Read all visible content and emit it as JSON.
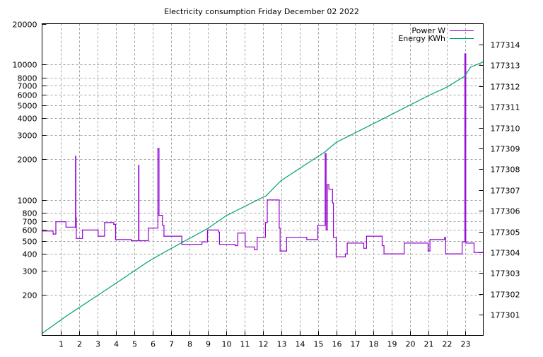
{
  "chart_data": {
    "type": "line",
    "title": "Electricity consumption Friday December 02 2022",
    "xlabel": "",
    "ylabel": "",
    "xlim": [
      0,
      24
    ],
    "ylim": [
      100,
      20000
    ],
    "yscale": "log",
    "y2lim": [
      177300,
      177315
    ],
    "grid": true,
    "legend_position": "top-right",
    "x_ticks": [
      1,
      2,
      3,
      4,
      5,
      6,
      7,
      8,
      9,
      10,
      11,
      12,
      13,
      14,
      15,
      16,
      17,
      18,
      19,
      20,
      21,
      22,
      23
    ],
    "y_ticks": [
      200,
      300,
      400,
      500,
      600,
      700,
      800,
      1000,
      2000,
      3000,
      4000,
      5000,
      6000,
      7000,
      8000,
      10000,
      20000
    ],
    "y2_ticks": [
      177301,
      177302,
      177303,
      177304,
      177305,
      177306,
      177307,
      177308,
      177309,
      177310,
      177311,
      177312,
      177313,
      177314
    ],
    "series": [
      {
        "name": "Power W",
        "axis": "y",
        "color": "#9400d3",
        "step": true,
        "points": [
          [
            0,
            590
          ],
          [
            0.6,
            560
          ],
          [
            0.75,
            690
          ],
          [
            1.3,
            630
          ],
          [
            1.8,
            630
          ],
          [
            1.82,
            2100
          ],
          [
            1.84,
            740
          ],
          [
            1.86,
            520
          ],
          [
            2.2,
            600
          ],
          [
            3.05,
            540
          ],
          [
            3.4,
            680
          ],
          [
            3.9,
            660
          ],
          [
            4.0,
            510
          ],
          [
            4.85,
            500
          ],
          [
            5.25,
            1800
          ],
          [
            5.27,
            500
          ],
          [
            5.78,
            620
          ],
          [
            6.3,
            2400
          ],
          [
            6.36,
            770
          ],
          [
            6.55,
            650
          ],
          [
            6.63,
            540
          ],
          [
            7.6,
            470
          ],
          [
            8.7,
            490
          ],
          [
            9.0,
            600
          ],
          [
            9.6,
            580
          ],
          [
            9.65,
            470
          ],
          [
            10.5,
            460
          ],
          [
            10.65,
            570
          ],
          [
            11.05,
            450
          ],
          [
            11.55,
            430
          ],
          [
            11.7,
            530
          ],
          [
            12.15,
            680
          ],
          [
            12.25,
            1000
          ],
          [
            12.9,
            620
          ],
          [
            12.95,
            420
          ],
          [
            13.3,
            530
          ],
          [
            14.4,
            510
          ],
          [
            15.0,
            650
          ],
          [
            15.4,
            2200
          ],
          [
            15.45,
            600
          ],
          [
            15.52,
            1300
          ],
          [
            15.6,
            1200
          ],
          [
            15.8,
            950
          ],
          [
            15.85,
            530
          ],
          [
            16.0,
            380
          ],
          [
            16.5,
            400
          ],
          [
            16.6,
            480
          ],
          [
            17.5,
            440
          ],
          [
            17.65,
            540
          ],
          [
            18.5,
            460
          ],
          [
            18.6,
            400
          ],
          [
            19.7,
            480
          ],
          [
            21.0,
            420
          ],
          [
            21.1,
            510
          ],
          [
            21.9,
            530
          ],
          [
            21.95,
            400
          ],
          [
            22.85,
            490
          ],
          [
            23.0,
            12000
          ],
          [
            23.05,
            480
          ],
          [
            23.5,
            410
          ],
          [
            24,
            410
          ]
        ]
      },
      {
        "name": "Energy KWh",
        "axis": "y2",
        "color": "#009e73",
        "step": false,
        "points": [
          [
            0,
            177300.1
          ],
          [
            1.3,
            177300.92
          ],
          [
            4.0,
            177302.5
          ],
          [
            5.75,
            177303.54
          ],
          [
            6.6,
            177303.98
          ],
          [
            9.0,
            177305.14
          ],
          [
            10.0,
            177305.75
          ],
          [
            12.2,
            177306.73
          ],
          [
            13.0,
            177307.45
          ],
          [
            15.4,
            177308.84
          ],
          [
            16.0,
            177309.29
          ],
          [
            18.5,
            177310.4
          ],
          [
            21.0,
            177311.53
          ],
          [
            22.0,
            177311.94
          ],
          [
            23.0,
            177312.48
          ],
          [
            23.3,
            177312.9
          ],
          [
            24,
            177313.16
          ]
        ]
      }
    ]
  }
}
